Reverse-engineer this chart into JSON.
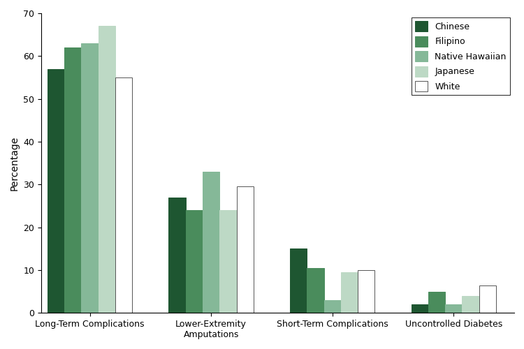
{
  "categories": [
    "Long-Term Complications",
    "Lower-Extremity\nAmputations",
    "Short-Term Complications",
    "Uncontrolled Diabetes"
  ],
  "groups": [
    "Chinese",
    "Filipino",
    "Native Hawaiian",
    "Japanese",
    "White"
  ],
  "values": {
    "Chinese": [
      57,
      27,
      15,
      2
    ],
    "Filipino": [
      62,
      24,
      10.5,
      5
    ],
    "Native Hawaiian": [
      63,
      33,
      3,
      2
    ],
    "Japanese": [
      67,
      24,
      9.5,
      4
    ],
    "White": [
      55,
      29.5,
      10,
      6.5
    ]
  },
  "colors": {
    "Chinese": "#1e5631",
    "Filipino": "#4a8c5c",
    "Native Hawaiian": "#85b898",
    "Japanese": "#bdd9c5",
    "White": "#ffffff"
  },
  "edgecolors": {
    "Chinese": "#1e5631",
    "Filipino": "#4a8c5c",
    "Native Hawaiian": "#85b898",
    "Japanese": "#bdd9c5",
    "White": "#555555"
  },
  "ylabel": "Percentage",
  "ylim": [
    0,
    70
  ],
  "yticks": [
    0,
    10,
    20,
    30,
    40,
    50,
    60,
    70
  ],
  "bar_width": 0.14,
  "legend_loc": "upper right",
  "figwidth": 7.5,
  "figheight": 5.0,
  "dpi": 100
}
